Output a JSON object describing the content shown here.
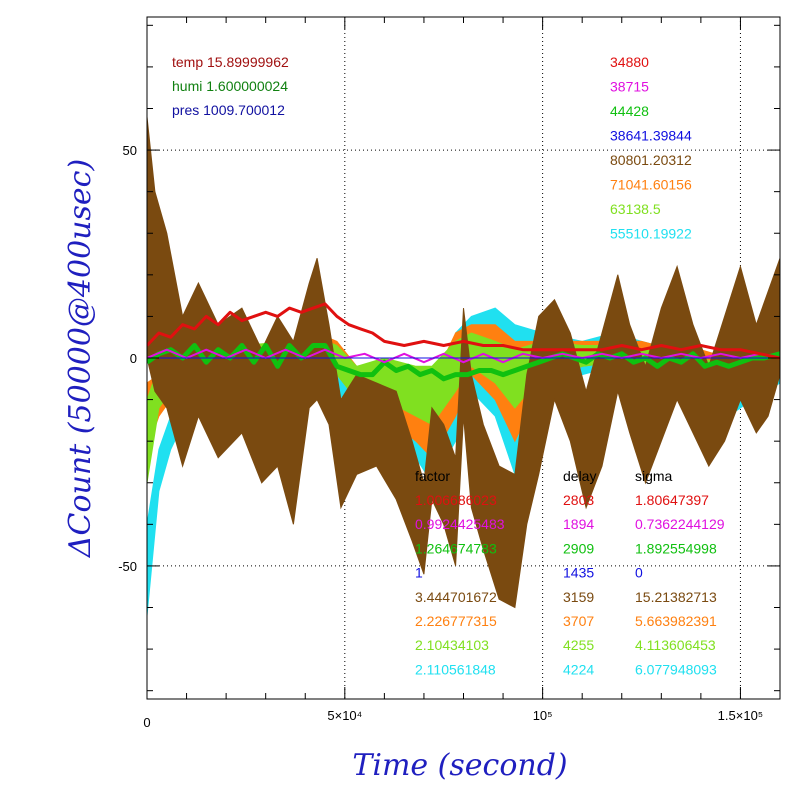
{
  "chart_data": {
    "type": "line",
    "title": "",
    "xlabel": "Time (second)",
    "ylabel": "ΔCount (50000@400usec)",
    "xlim": [
      0,
      160000
    ],
    "ylim": [
      -82,
      82
    ],
    "grid": true,
    "x_ticks": [
      {
        "v": 0,
        "label": "0"
      },
      {
        "v": 50000,
        "label": "5×10⁴"
      },
      {
        "v": 100000,
        "label": "10⁵"
      },
      {
        "v": 150000,
        "label": "1.5×10⁵"
      }
    ],
    "y_ticks": [
      {
        "v": 50,
        "label": "50"
      },
      {
        "v": 0,
        "label": "0"
      },
      {
        "v": -50,
        "label": "-50"
      }
    ],
    "env": [
      {
        "label": "temp",
        "value": "15.89999962",
        "color": "#a01010"
      },
      {
        "label": "humi",
        "value": "1.600000024",
        "color": "#108010"
      },
      {
        "label": "pres",
        "value": "1009.700012",
        "color": "#1010a0"
      }
    ],
    "counts": [
      {
        "value": "34880",
        "color": "#e01010"
      },
      {
        "value": "38715",
        "color": "#e010e0"
      },
      {
        "value": "44428",
        "color": "#10c010"
      },
      {
        "value": "38641.39844",
        "color": "#1010e0"
      },
      {
        "value": "80801.20312",
        "color": "#7a4a10"
      },
      {
        "value": "71041.60156",
        "color": "#ff8010"
      },
      {
        "value": "63138.5",
        "color": "#80e020"
      },
      {
        "value": "55510.19922",
        "color": "#20e0f0"
      }
    ],
    "table_headers": {
      "factor": "factor",
      "delay": "delay",
      "sigma": "sigma"
    },
    "table": [
      {
        "factor": "1.006686023",
        "delay": "2803",
        "sigma": "1.80647397",
        "color": "#e01010"
      },
      {
        "factor": "0.9924425483",
        "delay": "1894",
        "sigma": "0.7362244129",
        "color": "#e010e0"
      },
      {
        "factor": "1.264674783",
        "delay": "2909",
        "sigma": "1.892554998",
        "color": "#10c010"
      },
      {
        "factor": "1",
        "delay": "1435",
        "sigma": "0",
        "color": "#1010e0"
      },
      {
        "factor": "3.444701672",
        "delay": "3159",
        "sigma": "15.21382713",
        "color": "#7a4a10"
      },
      {
        "factor": "2.226777315",
        "delay": "3707",
        "sigma": "5.663982391",
        "color": "#ff8010"
      },
      {
        "factor": "2.10434103",
        "delay": "4255",
        "sigma": "4.113606453",
        "color": "#80e020"
      },
      {
        "factor": "2.110561848",
        "delay": "4224",
        "sigma": "6.077948093",
        "color": "#20e0f0"
      }
    ],
    "series": [
      {
        "color": "#20e0f0",
        "style": "band",
        "x": [
          0,
          3000,
          6000,
          9000,
          15000,
          25000,
          35000,
          43000,
          48000,
          53000,
          60000,
          68000,
          72000,
          78000,
          82000,
          88000,
          93000,
          100000,
          110000,
          118000,
          125000,
          133000,
          140000,
          147000,
          153000,
          160000
        ],
        "lo": [
          -62,
          -32,
          -22,
          -16,
          -12,
          -10,
          -8,
          -6,
          -8,
          -14,
          -18,
          -24,
          -30,
          -20,
          -8,
          -14,
          -28,
          -10,
          -4,
          -2,
          -4,
          -6,
          -10,
          -14,
          -10,
          -6
        ],
        "hi": [
          -40,
          -22,
          -14,
          -10,
          -7,
          -5,
          -3,
          4,
          2,
          -6,
          -10,
          -14,
          -12,
          6,
          10,
          12,
          8,
          6,
          4,
          6,
          4,
          2,
          0,
          -4,
          -2,
          2
        ]
      },
      {
        "color": "#ff8010",
        "style": "band",
        "x": [
          0,
          3000,
          6000,
          9000,
          15000,
          25000,
          35000,
          43000,
          48000,
          53000,
          60000,
          68000,
          72000,
          78000,
          82000,
          88000,
          93000,
          100000,
          110000,
          118000,
          125000,
          133000,
          140000,
          147000,
          153000,
          160000
        ],
        "lo": [
          -22,
          -14,
          -10,
          -8,
          -6,
          -5,
          -4,
          -2,
          -4,
          -10,
          -14,
          -20,
          -24,
          -14,
          -4,
          -10,
          -20,
          -6,
          -2,
          -1,
          -2,
          -4,
          -6,
          -8,
          -6,
          -2
        ],
        "hi": [
          -6,
          -4,
          -2,
          0,
          2,
          2,
          3,
          6,
          4,
          -2,
          -4,
          -8,
          -6,
          6,
          8,
          8,
          4,
          4,
          4,
          4,
          4,
          2,
          2,
          0,
          4,
          10
        ]
      },
      {
        "color": "#80e020",
        "style": "band",
        "x": [
          0,
          3000,
          6000,
          9000,
          15000,
          25000,
          35000,
          43000,
          48000,
          53000,
          60000,
          68000,
          72000,
          78000,
          82000,
          88000,
          93000,
          100000,
          110000,
          118000,
          125000,
          133000,
          140000,
          147000,
          153000,
          160000
        ],
        "lo": [
          -30,
          -12,
          -8,
          -6,
          -4,
          -3,
          -2,
          -1,
          -4,
          -10,
          -10,
          -14,
          -16,
          -8,
          -2,
          -6,
          -12,
          -4,
          -2,
          -1,
          -2,
          -4,
          -6,
          -10,
          -8,
          -4
        ],
        "hi": [
          -10,
          -2,
          0,
          2,
          4,
          3,
          4,
          5,
          3,
          -2,
          0,
          -2,
          -2,
          4,
          6,
          4,
          2,
          4,
          3,
          3,
          2,
          1,
          0,
          -2,
          0,
          2
        ]
      },
      {
        "color": "#7a4a10",
        "style": "band",
        "x": [
          0,
          2000,
          5000,
          9000,
          13000,
          18000,
          24000,
          29000,
          33000,
          37000,
          41000,
          43000,
          46000,
          49000,
          53000,
          58000,
          63000,
          67000,
          70000,
          72000,
          75000,
          78000,
          80000,
          82000,
          85000,
          89000,
          93000,
          96000,
          99000,
          103000,
          107000,
          111000,
          115000,
          119000,
          122000,
          126000,
          130000,
          134000,
          138000,
          142000,
          146000,
          150000,
          154000,
          157000,
          160000
        ],
        "lo": [
          0,
          -8,
          -12,
          -26,
          -14,
          -24,
          -18,
          -30,
          -26,
          -40,
          -12,
          -10,
          -16,
          -36,
          -28,
          -26,
          -34,
          -44,
          -52,
          -34,
          -40,
          -50,
          -14,
          -36,
          -46,
          -58,
          -60,
          -40,
          -28,
          -10,
          -20,
          -36,
          -26,
          -8,
          -18,
          -30,
          -20,
          -10,
          -18,
          -26,
          -20,
          -10,
          -18,
          -14,
          -4
        ],
        "hi": [
          58,
          40,
          30,
          10,
          18,
          8,
          12,
          2,
          10,
          4,
          18,
          24,
          8,
          -10,
          -4,
          -6,
          -8,
          -20,
          -30,
          -12,
          -16,
          -24,
          12,
          -4,
          -16,
          -26,
          -28,
          -4,
          10,
          14,
          6,
          -8,
          6,
          20,
          8,
          -2,
          12,
          22,
          8,
          -2,
          10,
          22,
          8,
          16,
          24
        ]
      },
      {
        "color": "#10c010",
        "style": "line",
        "width": 5,
        "x": [
          0,
          3000,
          6000,
          9000,
          12000,
          15000,
          18000,
          21000,
          24000,
          27000,
          30000,
          33000,
          36000,
          39000,
          42000,
          45000,
          48000,
          51000,
          54000,
          57000,
          60000,
          63000,
          66000,
          69000,
          72000,
          75000,
          78000,
          81000,
          84000,
          87000,
          90000,
          93000,
          96000,
          99000,
          102000,
          105000,
          108000,
          111000,
          114000,
          117000,
          120000,
          123000,
          126000,
          129000,
          132000,
          135000,
          138000,
          141000,
          144000,
          147000,
          150000,
          153000,
          156000,
          160000
        ],
        "y": [
          -1,
          1,
          2,
          0,
          3,
          -1,
          2,
          0,
          3,
          -1,
          3,
          -2,
          3,
          0,
          3,
          3,
          -2,
          -3,
          -4,
          -4,
          -1,
          -3,
          -2,
          -4,
          -3,
          -5,
          -4,
          -4,
          -3,
          -3,
          -4,
          -3,
          -2,
          -1,
          0,
          1,
          0,
          -1,
          1,
          0,
          1,
          -1,
          0,
          -2,
          0,
          -1,
          1,
          -2,
          -1,
          -2,
          -1,
          0,
          0,
          1
        ]
      },
      {
        "color": "#e010e0",
        "style": "line",
        "width": 2,
        "x": [
          0,
          5000,
          10000,
          15000,
          20000,
          25000,
          30000,
          35000,
          40000,
          45000,
          50000,
          55000,
          60000,
          65000,
          70000,
          75000,
          80000,
          85000,
          90000,
          95000,
          100000,
          105000,
          110000,
          115000,
          120000,
          125000,
          130000,
          135000,
          140000,
          145000,
          150000,
          155000,
          160000
        ],
        "y": [
          0,
          2,
          0,
          2,
          0,
          2,
          0,
          2,
          0,
          2,
          0,
          1,
          -1,
          1,
          -1,
          1,
          -1,
          1,
          -1,
          1,
          0,
          1,
          0,
          1,
          0,
          1,
          0,
          1,
          0,
          1,
          0,
          1,
          0
        ]
      },
      {
        "color": "#1010e0",
        "style": "line",
        "width": 1,
        "x": [
          0,
          20000,
          40000,
          60000,
          80000,
          100000,
          120000,
          140000,
          160000
        ],
        "y": [
          0,
          0,
          0,
          0,
          0,
          0,
          0,
          0,
          0
        ]
      },
      {
        "color": "#e01010",
        "style": "line",
        "width": 3,
        "x": [
          0,
          3000,
          6000,
          9000,
          12000,
          15000,
          18000,
          21000,
          24000,
          27000,
          30000,
          33000,
          36000,
          39000,
          42000,
          45000,
          48000,
          51000,
          54000,
          57000,
          60000,
          65000,
          70000,
          75000,
          80000,
          85000,
          90000,
          95000,
          100000,
          105000,
          110000,
          115000,
          120000,
          125000,
          130000,
          135000,
          140000,
          145000,
          150000,
          155000,
          160000
        ],
        "y": [
          3,
          6,
          5,
          8,
          7,
          10,
          8,
          11,
          9,
          10,
          11,
          10,
          12,
          11,
          12,
          13,
          10,
          8,
          7,
          6,
          4,
          3,
          4,
          3,
          4,
          3,
          3,
          2,
          2,
          2,
          2,
          2,
          3,
          2,
          3,
          2,
          3,
          2,
          2,
          1,
          0
        ]
      }
    ]
  }
}
